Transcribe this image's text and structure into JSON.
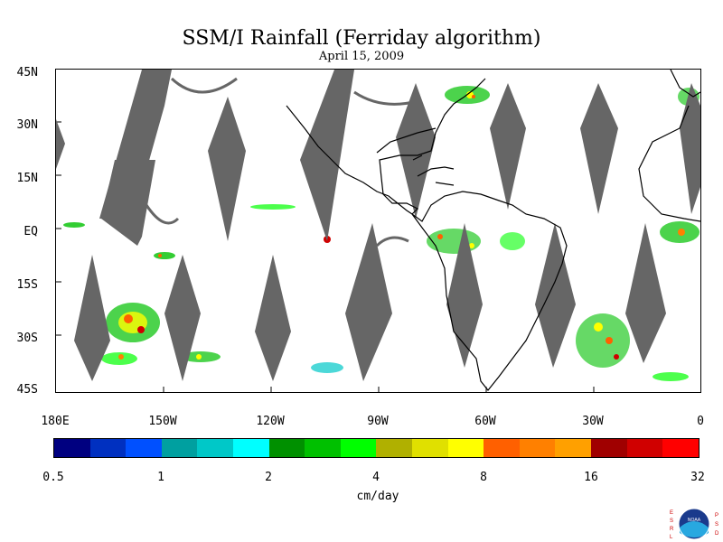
{
  "title": "SSM/I Rainfall (Ferriday algorithm)",
  "date": "April 15, 2009",
  "map": {
    "lat_labels": [
      "45N",
      "30N",
      "15N",
      "EQ",
      "15S",
      "30S",
      "45S"
    ],
    "lon_labels": [
      "180E",
      "150W",
      "120W",
      "90W",
      "60W",
      "30W",
      "0"
    ],
    "extent": {
      "lon_min": -180,
      "lon_max": 0,
      "lat_min": -45,
      "lat_max": 45
    },
    "swath_color": "#666666",
    "land_outline_color": "#000000"
  },
  "colorbar": {
    "colors": [
      "#000080",
      "#0030c0",
      "#0050ff",
      "#00a0a0",
      "#00c8c8",
      "#00ffff",
      "#009000",
      "#00c000",
      "#00ff00",
      "#b0b000",
      "#e0e000",
      "#ffff00",
      "#ff6000",
      "#ff8000",
      "#ffa000",
      "#a00000",
      "#d00000",
      "#ff0000"
    ],
    "labels": [
      "0.5",
      "1",
      "2",
      "4",
      "8",
      "16",
      "32"
    ],
    "units": "cm/day"
  },
  "logo": {
    "left_text": "ESRL",
    "right_text": "PSD",
    "center_text": "NOAA"
  }
}
